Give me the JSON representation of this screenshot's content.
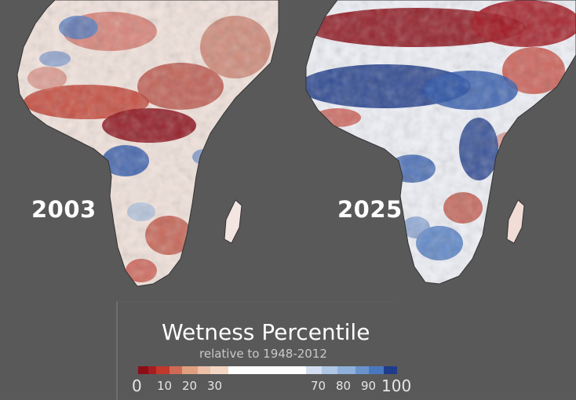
{
  "panels": [
    {
      "year": "2003",
      "dominant": "dry"
    },
    {
      "year": "2025",
      "dominant": "wet"
    }
  ],
  "legend": {
    "title": "Wetness Percentile",
    "subtitle": "relative to 1948-2012",
    "ticks": [
      "0",
      "10",
      "20",
      "30",
      "70",
      "80",
      "90",
      "100"
    ],
    "colors": {
      "very_dry": "#8b0d17",
      "dry": "#c0392b",
      "moderately_dry": "#e0a080",
      "slightly_dry": "#f3d7c4",
      "normal": "#ffffff",
      "slightly_wet": "#d3dff0",
      "moderately_wet": "#8fb0da",
      "wet": "#4a78bf",
      "very_wet": "#1f3c8a"
    }
  },
  "colors": {
    "background": "#595959",
    "land_outline": "#333333"
  }
}
